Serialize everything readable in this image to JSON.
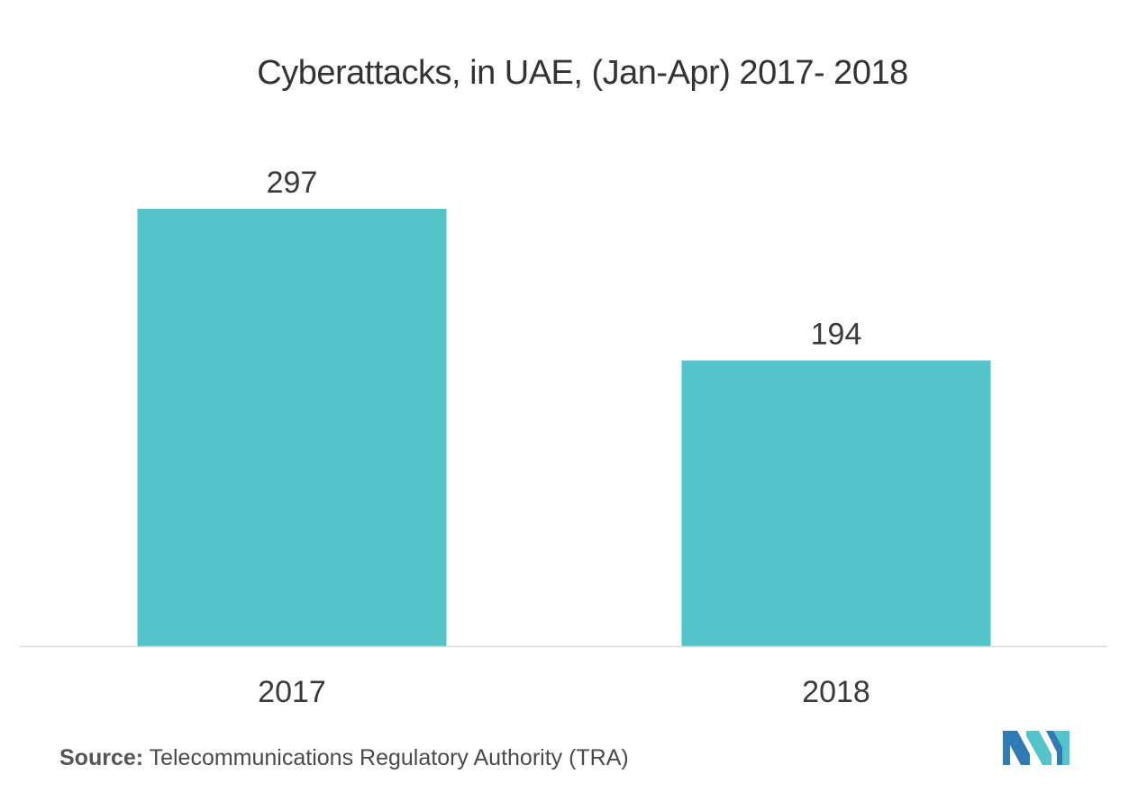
{
  "chart_data": {
    "type": "bar",
    "title": "Cyberattacks, in UAE, (Jan-Apr) 2017- 2018",
    "categories": [
      "2017",
      "2018"
    ],
    "values": [
      297,
      194
    ],
    "data_labels": [
      "297",
      "194"
    ],
    "xlabel": "",
    "ylabel": "",
    "ylim": [
      0,
      297
    ],
    "grid": false,
    "bar_color": "#52c4ca",
    "axis_color": "#d9d9d9"
  },
  "source": {
    "label": "Source:",
    "text": " Telecommunications Regulatory Authority (TRA)"
  },
  "logo": {
    "icon": "mordor-intelligence-logo-icon",
    "colors": [
      "#2e7bb6",
      "#52c4ca"
    ]
  }
}
